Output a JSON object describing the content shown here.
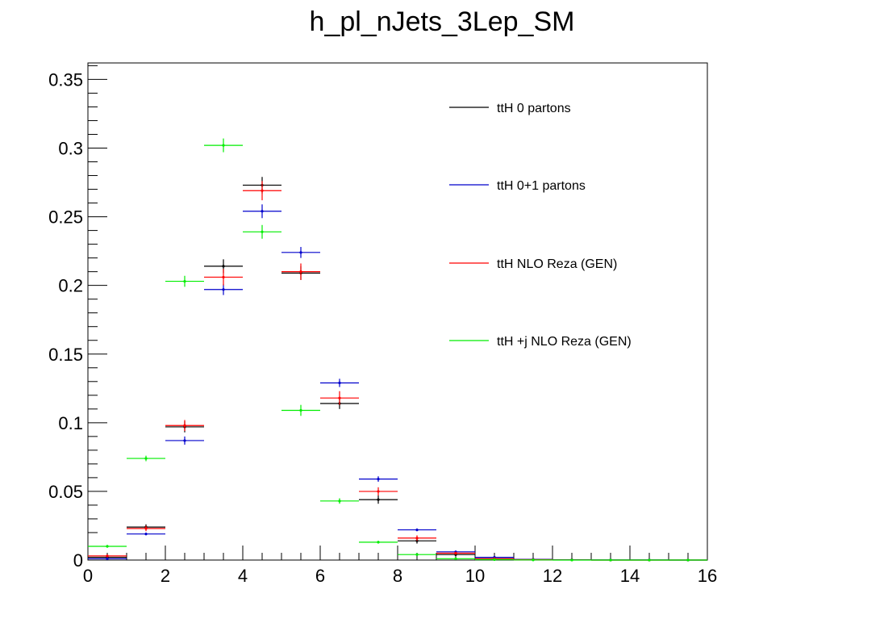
{
  "chart_data": {
    "type": "scatter",
    "title": "h_pl_nJets_3Lep_SM",
    "xlabel": "",
    "ylabel": "",
    "xlim": [
      0,
      16
    ],
    "ylim": [
      0,
      0.362
    ],
    "x_ticks": [
      "0",
      "2",
      "4",
      "6",
      "8",
      "10",
      "12",
      "14",
      "16"
    ],
    "y_ticks": [
      "0",
      "0.05",
      "0.1",
      "0.15",
      "0.2",
      "0.25",
      "0.3",
      "0.35"
    ],
    "grid": false,
    "legend_placement": "top-right",
    "bin_edges": [
      0,
      1,
      2,
      3,
      4,
      5,
      6,
      7,
      8,
      9,
      10,
      11,
      12,
      13,
      14,
      15,
      16
    ],
    "series": [
      {
        "name": "ttH 0 partons",
        "color": "#000000",
        "values": [
          0.002,
          0.024,
          0.097,
          0.214,
          0.273,
          0.209,
          0.114,
          0.044,
          0.014,
          0.004,
          0.001,
          0.0003,
          0.0001,
          0.0,
          0.0,
          0.0
        ],
        "errors": [
          0.001,
          0.002,
          0.004,
          0.005,
          0.006,
          0.005,
          0.004,
          0.003,
          0.002,
          0.001,
          0.0005,
          0.0002,
          0.0001,
          0.0,
          0.0,
          0.0
        ]
      },
      {
        "name": "ttH 0+1 partons",
        "color": "#0000cc",
        "values": [
          0.001,
          0.019,
          0.087,
          0.197,
          0.254,
          0.224,
          0.129,
          0.059,
          0.022,
          0.006,
          0.002,
          0.0005,
          0.0002,
          0.0001,
          0.0001,
          0.0
        ],
        "errors": [
          0.0005,
          0.001,
          0.003,
          0.004,
          0.005,
          0.004,
          0.003,
          0.002,
          0.001,
          0.0008,
          0.0005,
          0.0003,
          0.0001,
          0.0001,
          0.0001,
          0.0
        ]
      },
      {
        "name": "ttH NLO Reza (GEN)",
        "color": "#ff0000",
        "values": [
          0.003,
          0.023,
          0.098,
          0.206,
          0.269,
          0.21,
          0.118,
          0.05,
          0.016,
          0.005,
          0.001,
          0.0003,
          0.0001,
          0.0,
          0.0,
          0.0
        ],
        "errors": [
          0.001,
          0.002,
          0.004,
          0.006,
          0.007,
          0.006,
          0.005,
          0.003,
          0.002,
          0.001,
          0.0005,
          0.0002,
          0.0001,
          0.0,
          0.0,
          0.0
        ]
      },
      {
        "name": "ttH +j NLO Reza (GEN)",
        "color": "#00ee00",
        "values": [
          0.01,
          0.074,
          0.203,
          0.302,
          0.239,
          0.109,
          0.043,
          0.013,
          0.004,
          0.001,
          0.0003,
          0.0001,
          0.0,
          0.0,
          0.0,
          0.0
        ],
        "errors": [
          0.001,
          0.002,
          0.004,
          0.005,
          0.005,
          0.004,
          0.002,
          0.001,
          0.0008,
          0.0004,
          0.0002,
          0.0001,
          0.0,
          0.0,
          0.0,
          0.0
        ]
      }
    ]
  }
}
